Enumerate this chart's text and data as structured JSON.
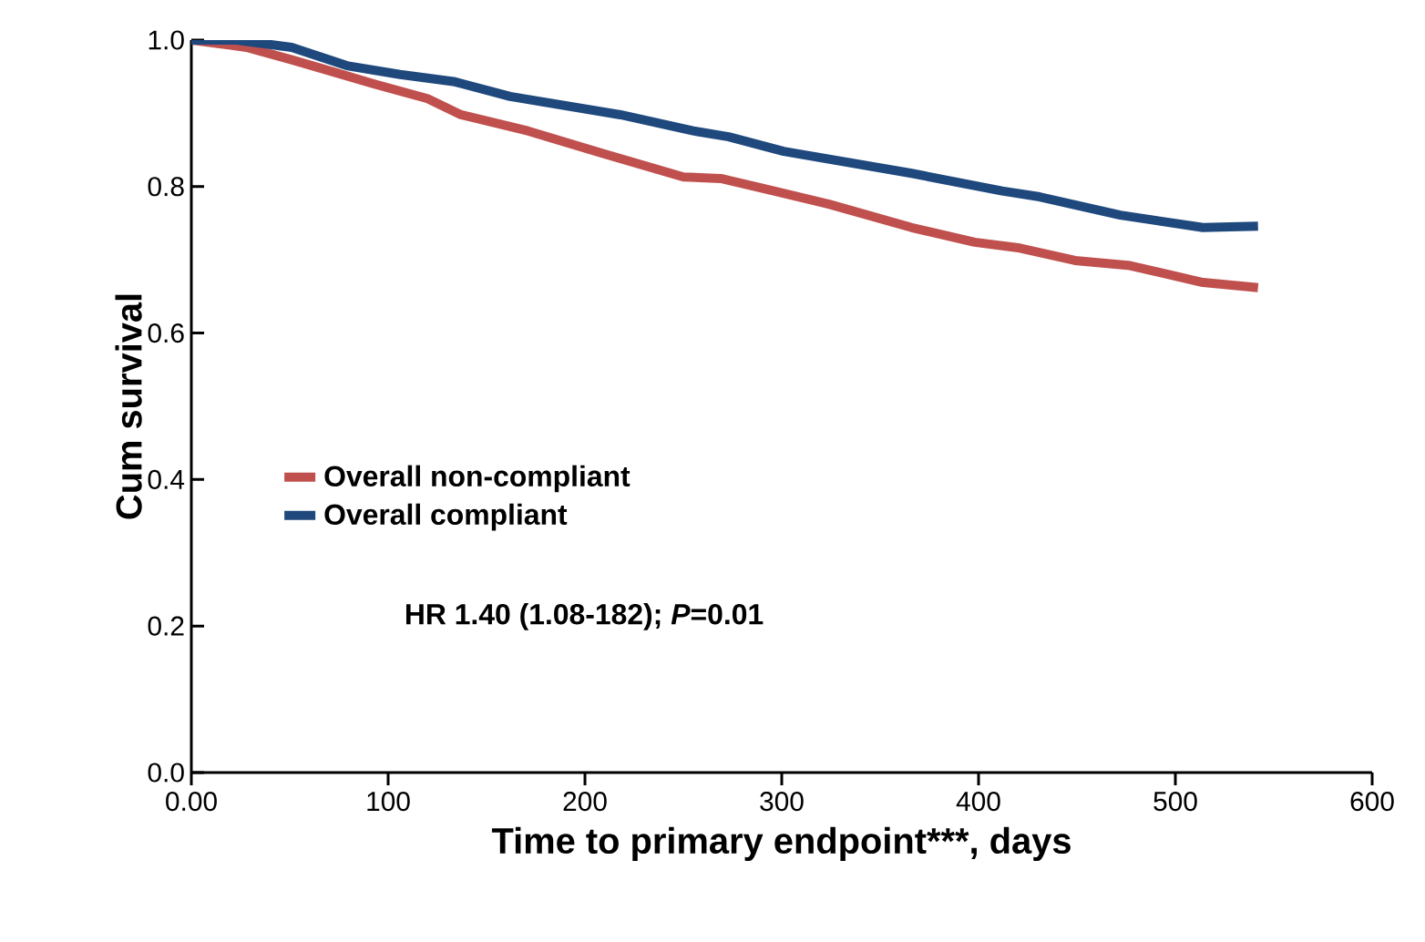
{
  "chart_data": {
    "type": "line",
    "xlabel": "Time to primary endpoint***, days",
    "ylabel": "Cum survival",
    "x": [
      0,
      28,
      51,
      74,
      93,
      120,
      137,
      171,
      208,
      250,
      269,
      296,
      324,
      366,
      398,
      421,
      449,
      477,
      514,
      542
    ],
    "series": [
      {
        "name": "Overall non-compliant",
        "color": "#c0504d",
        "values": [
          1.0,
          0.99,
          0.973,
          0.955,
          0.94,
          0.92,
          0.898,
          0.876,
          0.846,
          0.813,
          0.811,
          0.794,
          0.776,
          0.744,
          0.724,
          0.716,
          0.699,
          0.692,
          0.669,
          0.662
        ]
      },
      {
        "name": "Overall compliant",
        "color": "#1f497d",
        "x": [
          0,
          23,
          51,
          79,
          106,
          134,
          162,
          218,
          255,
          273,
          301,
          366,
          412,
          431,
          472,
          514,
          542
        ],
        "values": [
          1.0,
          1.0,
          0.99,
          0.965,
          0.953,
          0.943,
          0.923,
          0.898,
          0.876,
          0.868,
          0.848,
          0.818,
          0.794,
          0.786,
          0.761,
          0.744,
          0.746
        ]
      }
    ],
    "annotations": [
      "HR 1.40 (1.08-182); *P*=0.01"
    ],
    "xlim": [
      0,
      600
    ],
    "ylim": [
      0,
      1.0
    ],
    "xticks": [
      {
        "value": 0,
        "label": "0.00"
      },
      100,
      200,
      300,
      400,
      500,
      600
    ],
    "yticks": [
      {
        "value": 0,
        "label": "0.0"
      },
      0.2,
      0.4,
      0.6,
      0.8,
      {
        "value": 1.0,
        "label": "1.0"
      }
    ],
    "grid": false,
    "legend": "left",
    "line_style": "solid",
    "marker": "none"
  }
}
